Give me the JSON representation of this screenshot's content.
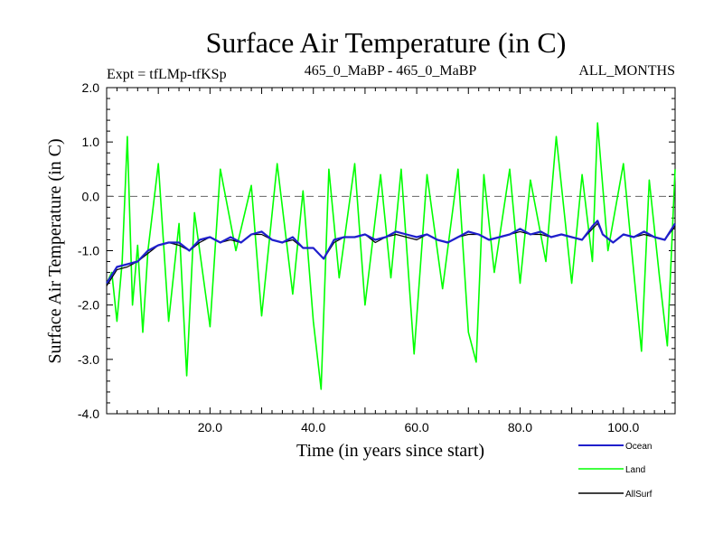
{
  "chart_data": {
    "type": "line",
    "title": "Surface Air Temperature (in C)",
    "subtitle_left": "Expt = tfLMp-tfKSp",
    "subtitle_center": "465_0_MaBP - 465_0_MaBP",
    "subtitle_right": "ALL_MONTHS",
    "xlabel": "Time (in years since start)",
    "ylabel": "Surface Air Temperature (in C)",
    "xlim": [
      0,
      110
    ],
    "ylim": [
      -4.0,
      2.0
    ],
    "x_ticks": [
      20,
      40,
      60,
      80,
      100
    ],
    "x_tick_labels": [
      "20.0",
      "40.0",
      "60.0",
      "80.0",
      "100.0"
    ],
    "y_ticks": [
      -4,
      -3,
      -2,
      -1,
      0,
      1,
      2
    ],
    "y_tick_labels": [
      "-4.0",
      "-3.0",
      "-2.0",
      "-1.0",
      "0.0",
      "1.0",
      "2.0"
    ],
    "reference_line": {
      "y": 0.0,
      "style": "dashed"
    },
    "legend_placement": "bottom-right, outside plot",
    "series": [
      {
        "name": "Land",
        "color": "#00ff00",
        "x": [
          0,
          1,
          2,
          3,
          4,
          5,
          6,
          7,
          8,
          10,
          12,
          14,
          15.5,
          17,
          20,
          22,
          25,
          28,
          30,
          33,
          36,
          38,
          40,
          41.5,
          43,
          45,
          48,
          50,
          53,
          55,
          57,
          59.5,
          62,
          65,
          68,
          70,
          71.5,
          73,
          75,
          78,
          80,
          82,
          85,
          87,
          90,
          92,
          94,
          95,
          97,
          100,
          102,
          103.5,
          105,
          107,
          108.5,
          110
        ],
        "values": [
          -1.6,
          -1.4,
          -2.3,
          -1.2,
          1.1,
          -2.0,
          -0.9,
          -2.5,
          -1.0,
          0.6,
          -2.3,
          -0.5,
          -3.3,
          -0.3,
          -2.4,
          0.5,
          -1.0,
          0.2,
          -2.2,
          0.6,
          -1.8,
          0.1,
          -2.3,
          -3.55,
          0.5,
          -1.5,
          0.6,
          -2.0,
          0.4,
          -1.5,
          0.5,
          -2.9,
          0.4,
          -1.7,
          0.5,
          -2.5,
          -3.05,
          0.4,
          -1.4,
          0.5,
          -1.6,
          0.3,
          -1.2,
          1.1,
          -1.6,
          0.4,
          -1.2,
          1.35,
          -1.0,
          0.6,
          -1.4,
          -2.85,
          0.3,
          -1.5,
          -2.75,
          0.5
        ]
      },
      {
        "name": "Ocean",
        "color": "#1f1fcc",
        "x": [
          0,
          2,
          4,
          6,
          8,
          10,
          12,
          14,
          16,
          18,
          20,
          22,
          24,
          26,
          28,
          30,
          32,
          34,
          36,
          38,
          40,
          42,
          44,
          46,
          48,
          50,
          52,
          54,
          56,
          58,
          60,
          62,
          64,
          66,
          68,
          70,
          72,
          74,
          76,
          78,
          80,
          82,
          84,
          86,
          88,
          90,
          92,
          94,
          95,
          96,
          98,
          100,
          102,
          104,
          106,
          108,
          110
        ],
        "values": [
          -1.6,
          -1.3,
          -1.25,
          -1.2,
          -1.0,
          -0.9,
          -0.85,
          -0.85,
          -1.0,
          -0.8,
          -0.75,
          -0.85,
          -0.75,
          -0.85,
          -0.7,
          -0.65,
          -0.8,
          -0.85,
          -0.75,
          -0.95,
          -0.95,
          -1.15,
          -0.8,
          -0.75,
          -0.75,
          -0.7,
          -0.8,
          -0.75,
          -0.65,
          -0.7,
          -0.75,
          -0.7,
          -0.8,
          -0.85,
          -0.75,
          -0.65,
          -0.7,
          -0.8,
          -0.75,
          -0.7,
          -0.6,
          -0.7,
          -0.65,
          -0.75,
          -0.7,
          -0.75,
          -0.8,
          -0.55,
          -0.45,
          -0.7,
          -0.85,
          -0.7,
          -0.75,
          -0.65,
          -0.75,
          -0.8,
          -0.5
        ]
      },
      {
        "name": "AllSurf",
        "color": "#000000",
        "x": [
          0,
          2,
          4,
          6,
          8,
          10,
          12,
          14,
          16,
          18,
          20,
          22,
          24,
          26,
          28,
          30,
          32,
          34,
          36,
          38,
          40,
          42,
          44,
          46,
          48,
          50,
          52,
          54,
          56,
          58,
          60,
          62,
          64,
          66,
          68,
          70,
          72,
          74,
          76,
          78,
          80,
          82,
          84,
          86,
          88,
          90,
          92,
          94,
          95,
          96,
          98,
          100,
          102,
          104,
          106,
          108,
          110
        ],
        "values": [
          -1.65,
          -1.35,
          -1.3,
          -1.2,
          -1.05,
          -0.9,
          -0.85,
          -0.9,
          -1.0,
          -0.85,
          -0.75,
          -0.85,
          -0.8,
          -0.85,
          -0.7,
          -0.7,
          -0.8,
          -0.85,
          -0.8,
          -0.95,
          -0.95,
          -1.15,
          -0.85,
          -0.75,
          -0.75,
          -0.7,
          -0.85,
          -0.75,
          -0.7,
          -0.75,
          -0.8,
          -0.7,
          -0.8,
          -0.85,
          -0.75,
          -0.7,
          -0.7,
          -0.8,
          -0.75,
          -0.7,
          -0.65,
          -0.7,
          -0.7,
          -0.75,
          -0.7,
          -0.75,
          -0.8,
          -0.6,
          -0.5,
          -0.7,
          -0.85,
          -0.7,
          -0.75,
          -0.7,
          -0.75,
          -0.8,
          -0.55
        ]
      }
    ],
    "legend_order": [
      "Ocean",
      "Land",
      "AllSurf"
    ]
  }
}
